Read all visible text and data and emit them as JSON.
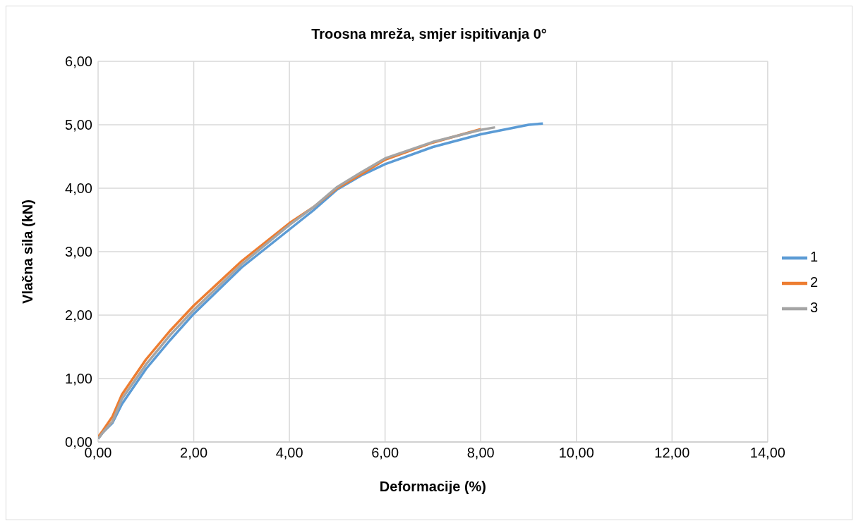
{
  "chart_data": {
    "type": "line",
    "title": "Troosna mreža, smjer ispitivanja 0°",
    "xlabel": "Deformacije (%)",
    "ylabel": "Vlačna sila (kN)",
    "series": [
      {
        "name": "1",
        "color": "#5b9bd5",
        "x": [
          0,
          0.1,
          0.3,
          0.5,
          1,
          1.5,
          2,
          3,
          4,
          4.5,
          5,
          5.5,
          6,
          7,
          8,
          9,
          9.3
        ],
        "values": [
          0.05,
          0.15,
          0.3,
          0.6,
          1.15,
          1.6,
          2.02,
          2.75,
          3.35,
          3.65,
          3.98,
          4.2,
          4.38,
          4.65,
          4.85,
          5.0,
          5.02
        ]
      },
      {
        "name": "2",
        "color": "#ed7d31",
        "x": [
          0,
          0.1,
          0.3,
          0.5,
          1,
          1.5,
          2,
          3,
          4,
          4.5,
          5,
          5.5,
          6,
          7,
          8
        ],
        "values": [
          0.08,
          0.18,
          0.4,
          0.75,
          1.3,
          1.75,
          2.15,
          2.85,
          3.45,
          3.7,
          4.0,
          4.22,
          4.45,
          4.72,
          4.93
        ]
      },
      {
        "name": "3",
        "color": "#a5a5a5",
        "x": [
          0,
          0.1,
          0.3,
          0.5,
          1,
          1.5,
          2,
          3,
          4,
          4.5,
          5,
          5.5,
          6,
          7,
          8,
          8.3
        ],
        "values": [
          0.05,
          0.15,
          0.32,
          0.68,
          1.22,
          1.68,
          2.08,
          2.8,
          3.42,
          3.7,
          4.02,
          4.25,
          4.47,
          4.73,
          4.92,
          4.96
        ]
      }
    ],
    "xlim": [
      0,
      14
    ],
    "xticks": [
      {
        "value": 0,
        "label": "0,00"
      },
      {
        "value": 2,
        "label": "2,00"
      },
      {
        "value": 4,
        "label": "4,00"
      },
      {
        "value": 6,
        "label": "6,00"
      },
      {
        "value": 8,
        "label": "8,00"
      },
      {
        "value": 10,
        "label": "10,00"
      },
      {
        "value": 12,
        "label": "12,00"
      },
      {
        "value": 14,
        "label": "14,00"
      }
    ],
    "ylim": [
      0,
      6
    ],
    "yticks": [
      {
        "value": 0,
        "label": "0,00"
      },
      {
        "value": 1,
        "label": "1,00"
      },
      {
        "value": 2,
        "label": "2,00"
      },
      {
        "value": 3,
        "label": "3,00"
      },
      {
        "value": 4,
        "label": "4,00"
      },
      {
        "value": 5,
        "label": "5,00"
      },
      {
        "value": 6,
        "label": "6,00"
      }
    ],
    "grid": true,
    "legend": "right",
    "marker": "none",
    "line_style": "solid"
  }
}
